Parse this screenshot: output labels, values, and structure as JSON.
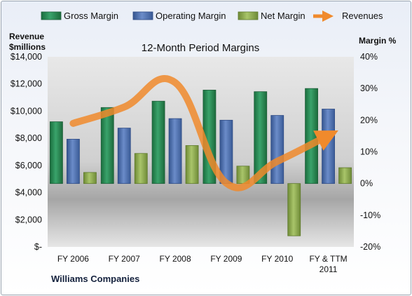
{
  "chart_data": {
    "type": "bar",
    "title": "12-Month Period Margins",
    "company": "Williams Companies",
    "y_left_title_line1": "Revenue",
    "y_left_title_line2": "$millions",
    "y_right_title": "Margin %",
    "categories": [
      [
        "FY 2006"
      ],
      [
        "FY 2007"
      ],
      [
        "FY 2008"
      ],
      [
        "FY 2009"
      ],
      [
        "FY 2010"
      ],
      [
        "FY & TTM",
        "2011"
      ]
    ],
    "left_axis": {
      "min": 0,
      "max": 14000,
      "step": 2000,
      "tick_labels": [
        "$-",
        "$2,000",
        "$4,000",
        "$6,000",
        "$8,000",
        "$10,000",
        "$12,000",
        "$14,000"
      ]
    },
    "right_axis": {
      "min": -20,
      "max": 40,
      "step": 10,
      "tick_labels": [
        "-20%",
        "-10%",
        "0%",
        "10%",
        "20%",
        "30%",
        "40%"
      ]
    },
    "series": [
      {
        "name": "Gross Margin",
        "axis": "right",
        "color": "#2e8b57",
        "values": [
          19.5,
          24,
          26,
          29.5,
          29,
          30
        ]
      },
      {
        "name": "Operating Margin",
        "axis": "right",
        "color": "#4f73b3",
        "values": [
          14,
          17.5,
          20.5,
          20,
          21.5,
          23.5
        ]
      },
      {
        "name": "Net Margin",
        "axis": "right",
        "color": "#8fae4f",
        "values": [
          3.5,
          9.5,
          12,
          5.5,
          -16.5,
          5
        ]
      },
      {
        "name": "Revenues",
        "axis": "left",
        "type": "line",
        "color": "#f08a2c",
        "values": [
          9100,
          10300,
          12100,
          4700,
          6300,
          8200
        ]
      }
    ],
    "grid": false,
    "legend_position": "top"
  }
}
